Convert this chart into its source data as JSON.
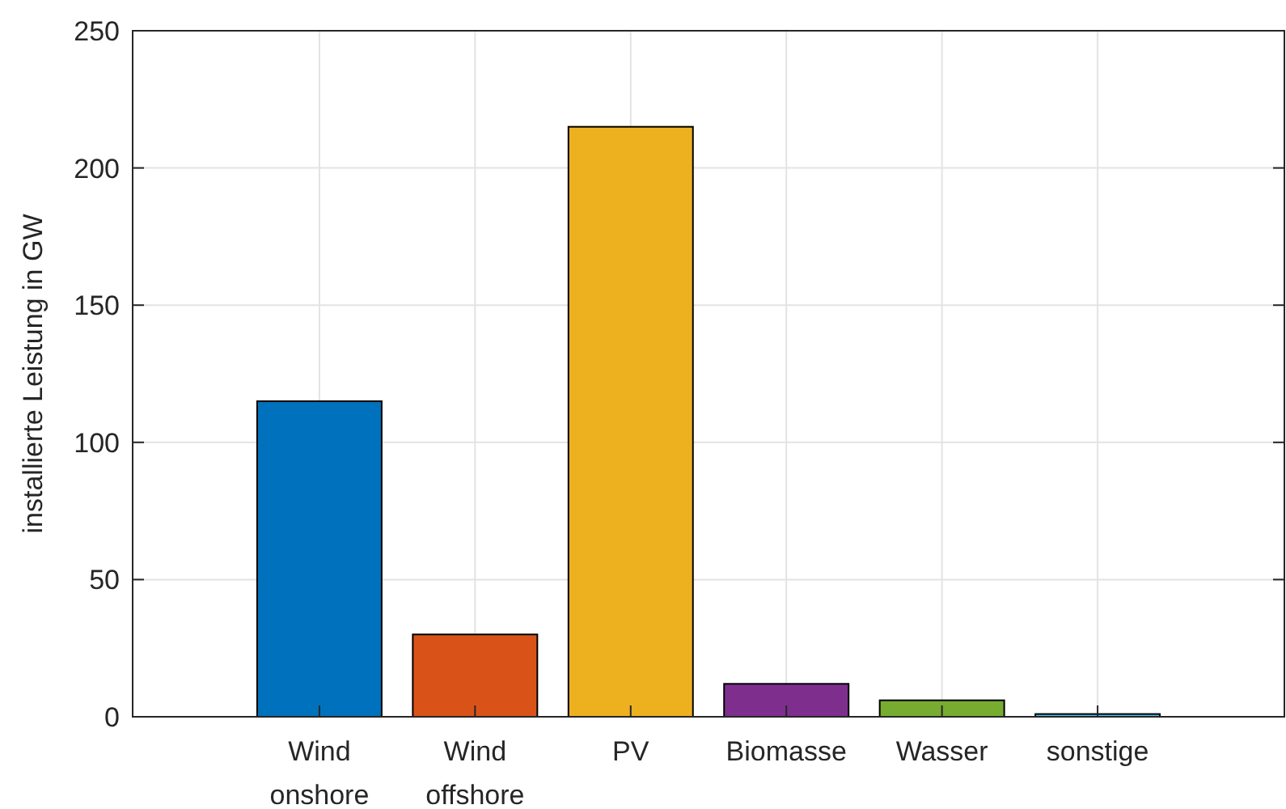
{
  "chart_data": {
    "type": "bar",
    "ylabel": "installierte Leistung in GW",
    "categories": [
      "Wind onshore",
      "Wind offshore",
      "PV",
      "Biomasse",
      "Wasser",
      "sonstige"
    ],
    "values": [
      115,
      30,
      215,
      12,
      6,
      1
    ],
    "colors": [
      "#0072bd",
      "#d95319",
      "#edb120",
      "#7e2f8e",
      "#77ac30",
      "#4dbeee"
    ],
    "ylim": [
      0,
      250
    ],
    "yticks": [
      0,
      50,
      100,
      150,
      200,
      250
    ],
    "grid": true
  }
}
